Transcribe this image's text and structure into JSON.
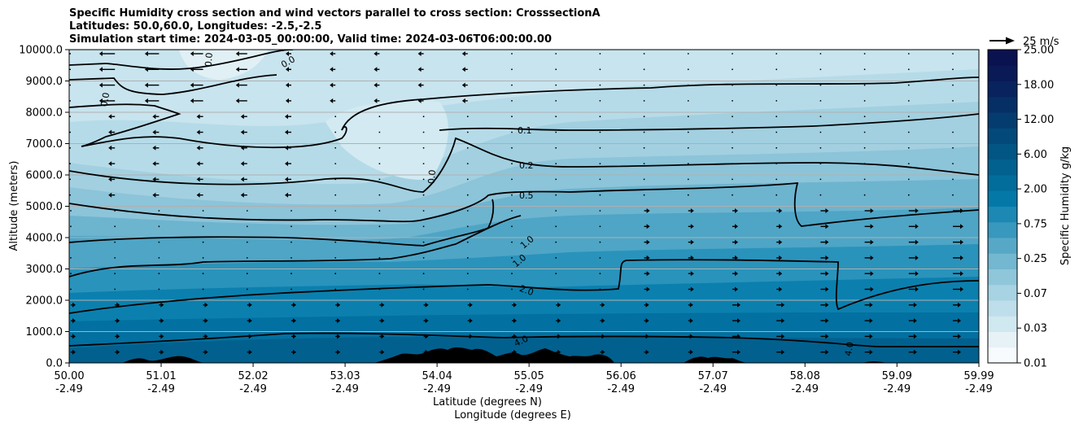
{
  "chart_data": {
    "type": "contour",
    "title_lines": [
      "Specific Humidity cross section and wind vectors parallel to cross section: CrosssectionA",
      "Latitudes: 50.0,60.0, Longitudes: -2.5,-2.5",
      "Simulation start time: 2024-03-05_00:00:00, Valid time: 2024-03-06T06:00:00.00"
    ],
    "xlabel_lat": "Latitude (degrees N)",
    "xlabel_lon": "Longitude (degrees E)",
    "ylabel": "Altitude (meters)",
    "x_range": [
      50.0,
      59.99
    ],
    "y_range": [
      0,
      10000
    ],
    "x_ticks": [
      {
        "lat": "50.00",
        "lon": "-2.49",
        "value": 50.0
      },
      {
        "lat": "51.01",
        "lon": "-2.49",
        "value": 51.01
      },
      {
        "lat": "52.02",
        "lon": "-2.49",
        "value": 52.02
      },
      {
        "lat": "53.03",
        "lon": "-2.49",
        "value": 53.03
      },
      {
        "lat": "54.04",
        "lon": "-2.49",
        "value": 54.04
      },
      {
        "lat": "55.05",
        "lon": "-2.49",
        "value": 55.05
      },
      {
        "lat": "56.06",
        "lon": "-2.49",
        "value": 56.06
      },
      {
        "lat": "57.07",
        "lon": "-2.49",
        "value": 57.07
      },
      {
        "lat": "58.08",
        "lon": "-2.49",
        "value": 58.08
      },
      {
        "lat": "59.09",
        "lon": "-2.49",
        "value": 59.09
      },
      {
        "lat": "59.99",
        "lon": "-2.49",
        "value": 59.99
      }
    ],
    "y_ticks": [
      {
        "label": "0.0",
        "value": 0
      },
      {
        "label": "1000.0",
        "value": 1000
      },
      {
        "label": "2000.0",
        "value": 2000
      },
      {
        "label": "3000.0",
        "value": 3000
      },
      {
        "label": "4000.0",
        "value": 4000
      },
      {
        "label": "5000.0",
        "value": 5000
      },
      {
        "label": "6000.0",
        "value": 6000
      },
      {
        "label": "7000.0",
        "value": 7000
      },
      {
        "label": "8000.0",
        "value": 8000
      },
      {
        "label": "9000.0",
        "value": 9000
      },
      {
        "label": "10000.0",
        "value": 10000
      }
    ],
    "colorbar": {
      "label": "Specific Humidity g/kg",
      "ticks": [
        "0.01",
        "0.03",
        "0.07",
        "0.25",
        "0.75",
        "2.00",
        "6.00",
        "12.00",
        "18.00",
        "25.00"
      ],
      "colors": [
        "#f7fbfd",
        "#e6f2f6",
        "#d0e8f0",
        "#bddeea",
        "#a7d3e2",
        "#8fc6da",
        "#74b7d0",
        "#57a8c7",
        "#3898bd",
        "#1d88b3",
        "#0479a7",
        "#026d9b",
        "#02618f",
        "#025684",
        "#03497a",
        "#053c70",
        "#062f66",
        "#08235e",
        "#0a1a56",
        "#0b1250"
      ]
    },
    "quiver_key": {
      "label": "25 m/s",
      "speed": 25
    },
    "contours": [
      {
        "level": "0.0",
        "label": "0.0"
      },
      {
        "level": "0.1",
        "label": "0.1"
      },
      {
        "level": "0.2",
        "label": "0.2"
      },
      {
        "level": "0.5",
        "label": "0.5"
      },
      {
        "level": "1.0",
        "label": "1.0"
      },
      {
        "level": "2.0",
        "label": "2.0"
      },
      {
        "level": "4.0",
        "label": "4.0"
      }
    ],
    "terrain_color": "#000000",
    "grid_color": "#b0b0b0"
  }
}
